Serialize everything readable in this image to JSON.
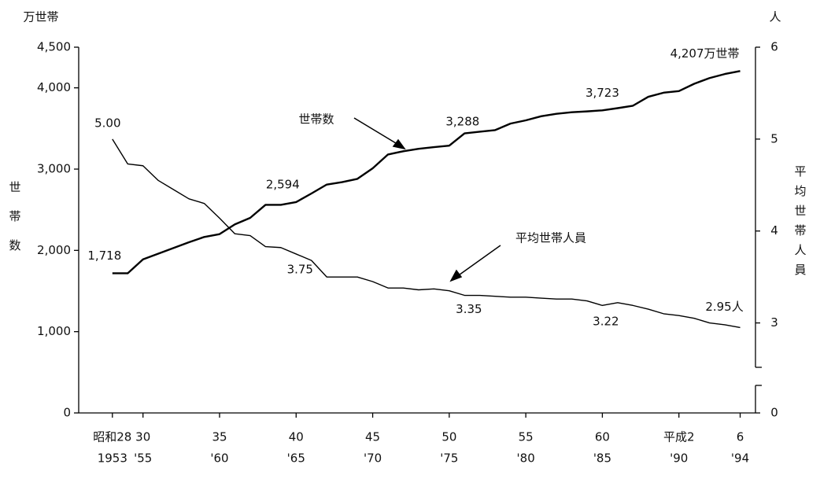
{
  "chart_data": {
    "type": "line",
    "y_unit_label": "万世帯",
    "y_label": "世帯数",
    "y2_unit_label": "人",
    "y2_label": "平均世帯人員",
    "annotations": [
      "世帯数",
      "平均世帯人員"
    ],
    "x": [
      1953,
      1954,
      1955,
      1956,
      1957,
      1958,
      1959,
      1960,
      1961,
      1962,
      1963,
      1964,
      1965,
      1966,
      1967,
      1968,
      1969,
      1970,
      1971,
      1972,
      1973,
      1974,
      1975,
      1976,
      1977,
      1978,
      1979,
      1980,
      1981,
      1982,
      1983,
      1984,
      1985,
      1986,
      1987,
      1988,
      1989,
      1990,
      1991,
      1992,
      1993,
      1994
    ],
    "xlim": [
      1950.8,
      1995
    ],
    "xticks": [
      {
        "value": 1953,
        "label": "昭和28"
      },
      {
        "value": 1955,
        "label": "30"
      },
      {
        "value": 1960,
        "label": "35"
      },
      {
        "value": 1965,
        "label": "40"
      },
      {
        "value": 1970,
        "label": "45"
      },
      {
        "value": 1975,
        "label": "50"
      },
      {
        "value": 1980,
        "label": "55"
      },
      {
        "value": 1985,
        "label": "60"
      },
      {
        "value": 1990,
        "label": "平成2"
      },
      {
        "value": 1994,
        "label": "6"
      }
    ],
    "xticks_western": [
      1953,
      {
        "value": 1955,
        "label": "'55"
      },
      {
        "value": 1960,
        "label": "'60"
      },
      {
        "value": 1965,
        "label": "'65"
      },
      {
        "value": 1970,
        "label": "'70"
      },
      {
        "value": 1975,
        "label": "'75"
      },
      {
        "value": 1980,
        "label": "'80"
      },
      {
        "value": 1985,
        "label": "'85"
      },
      {
        "value": 1990,
        "label": "'90"
      },
      {
        "value": 1994,
        "label": "'94"
      }
    ],
    "ylim": [
      0,
      4500
    ],
    "yticks": [
      0,
      {
        "value": 1000,
        "label": "1,000"
      },
      {
        "value": 2000,
        "label": "2,000"
      },
      {
        "value": 3000,
        "label": "3,000"
      },
      {
        "value": 4000,
        "label": "4,000"
      },
      {
        "value": 4500,
        "label": "4,500"
      }
    ],
    "y2lim": [
      2.5,
      6
    ],
    "y2ticks": [
      0,
      3,
      4,
      5,
      6
    ],
    "y2_axis_break": true,
    "series": [
      {
        "name": "世帯数",
        "color": "#000000",
        "values": [
          1718,
          1718,
          1890,
          1960,
          2030,
          2100,
          2165,
          2200,
          2320,
          2400,
          2560,
          2560,
          2594,
          2700,
          2810,
          2840,
          2880,
          3010,
          3180,
          3220,
          3250,
          3270,
          3288,
          3440,
          3460,
          3480,
          3560,
          3600,
          3650,
          3680,
          3700,
          3710,
          3723,
          3750,
          3780,
          3890,
          3940,
          3960,
          4050,
          4120,
          4170,
          4207
        ],
        "value_labels": [
          "1,718",
          null,
          null,
          null,
          null,
          null,
          null,
          null,
          null,
          null,
          null,
          null,
          "2,594",
          null,
          null,
          null,
          null,
          null,
          null,
          null,
          null,
          null,
          "3,288",
          null,
          null,
          null,
          null,
          null,
          null,
          null,
          null,
          null,
          "3,723",
          null,
          null,
          null,
          null,
          null,
          null,
          null,
          null,
          "4,207万世帯"
        ]
      },
      {
        "name": "平均世帯人員",
        "color": "#000000",
        "axis": "y2",
        "values": [
          5.0,
          4.73,
          4.71,
          4.55,
          4.45,
          4.35,
          4.3,
          4.14,
          3.97,
          3.95,
          3.83,
          3.82,
          3.75,
          3.68,
          3.5,
          3.5,
          3.5,
          3.45,
          3.38,
          3.38,
          3.36,
          3.37,
          3.35,
          3.3,
          3.3,
          3.29,
          3.28,
          3.28,
          3.27,
          3.26,
          3.26,
          3.24,
          3.19,
          3.22,
          3.19,
          3.15,
          3.1,
          3.08,
          3.05,
          3.0,
          2.98,
          2.95
        ],
        "value_labels": [
          "5.00",
          null,
          null,
          null,
          null,
          null,
          null,
          null,
          null,
          null,
          null,
          null,
          "3.75",
          null,
          null,
          null,
          null,
          null,
          null,
          null,
          null,
          null,
          "3.35",
          null,
          null,
          null,
          null,
          null,
          null,
          null,
          null,
          null,
          null,
          "3.22",
          null,
          null,
          null,
          null,
          null,
          null,
          null,
          "2.95人"
        ]
      }
    ]
  }
}
